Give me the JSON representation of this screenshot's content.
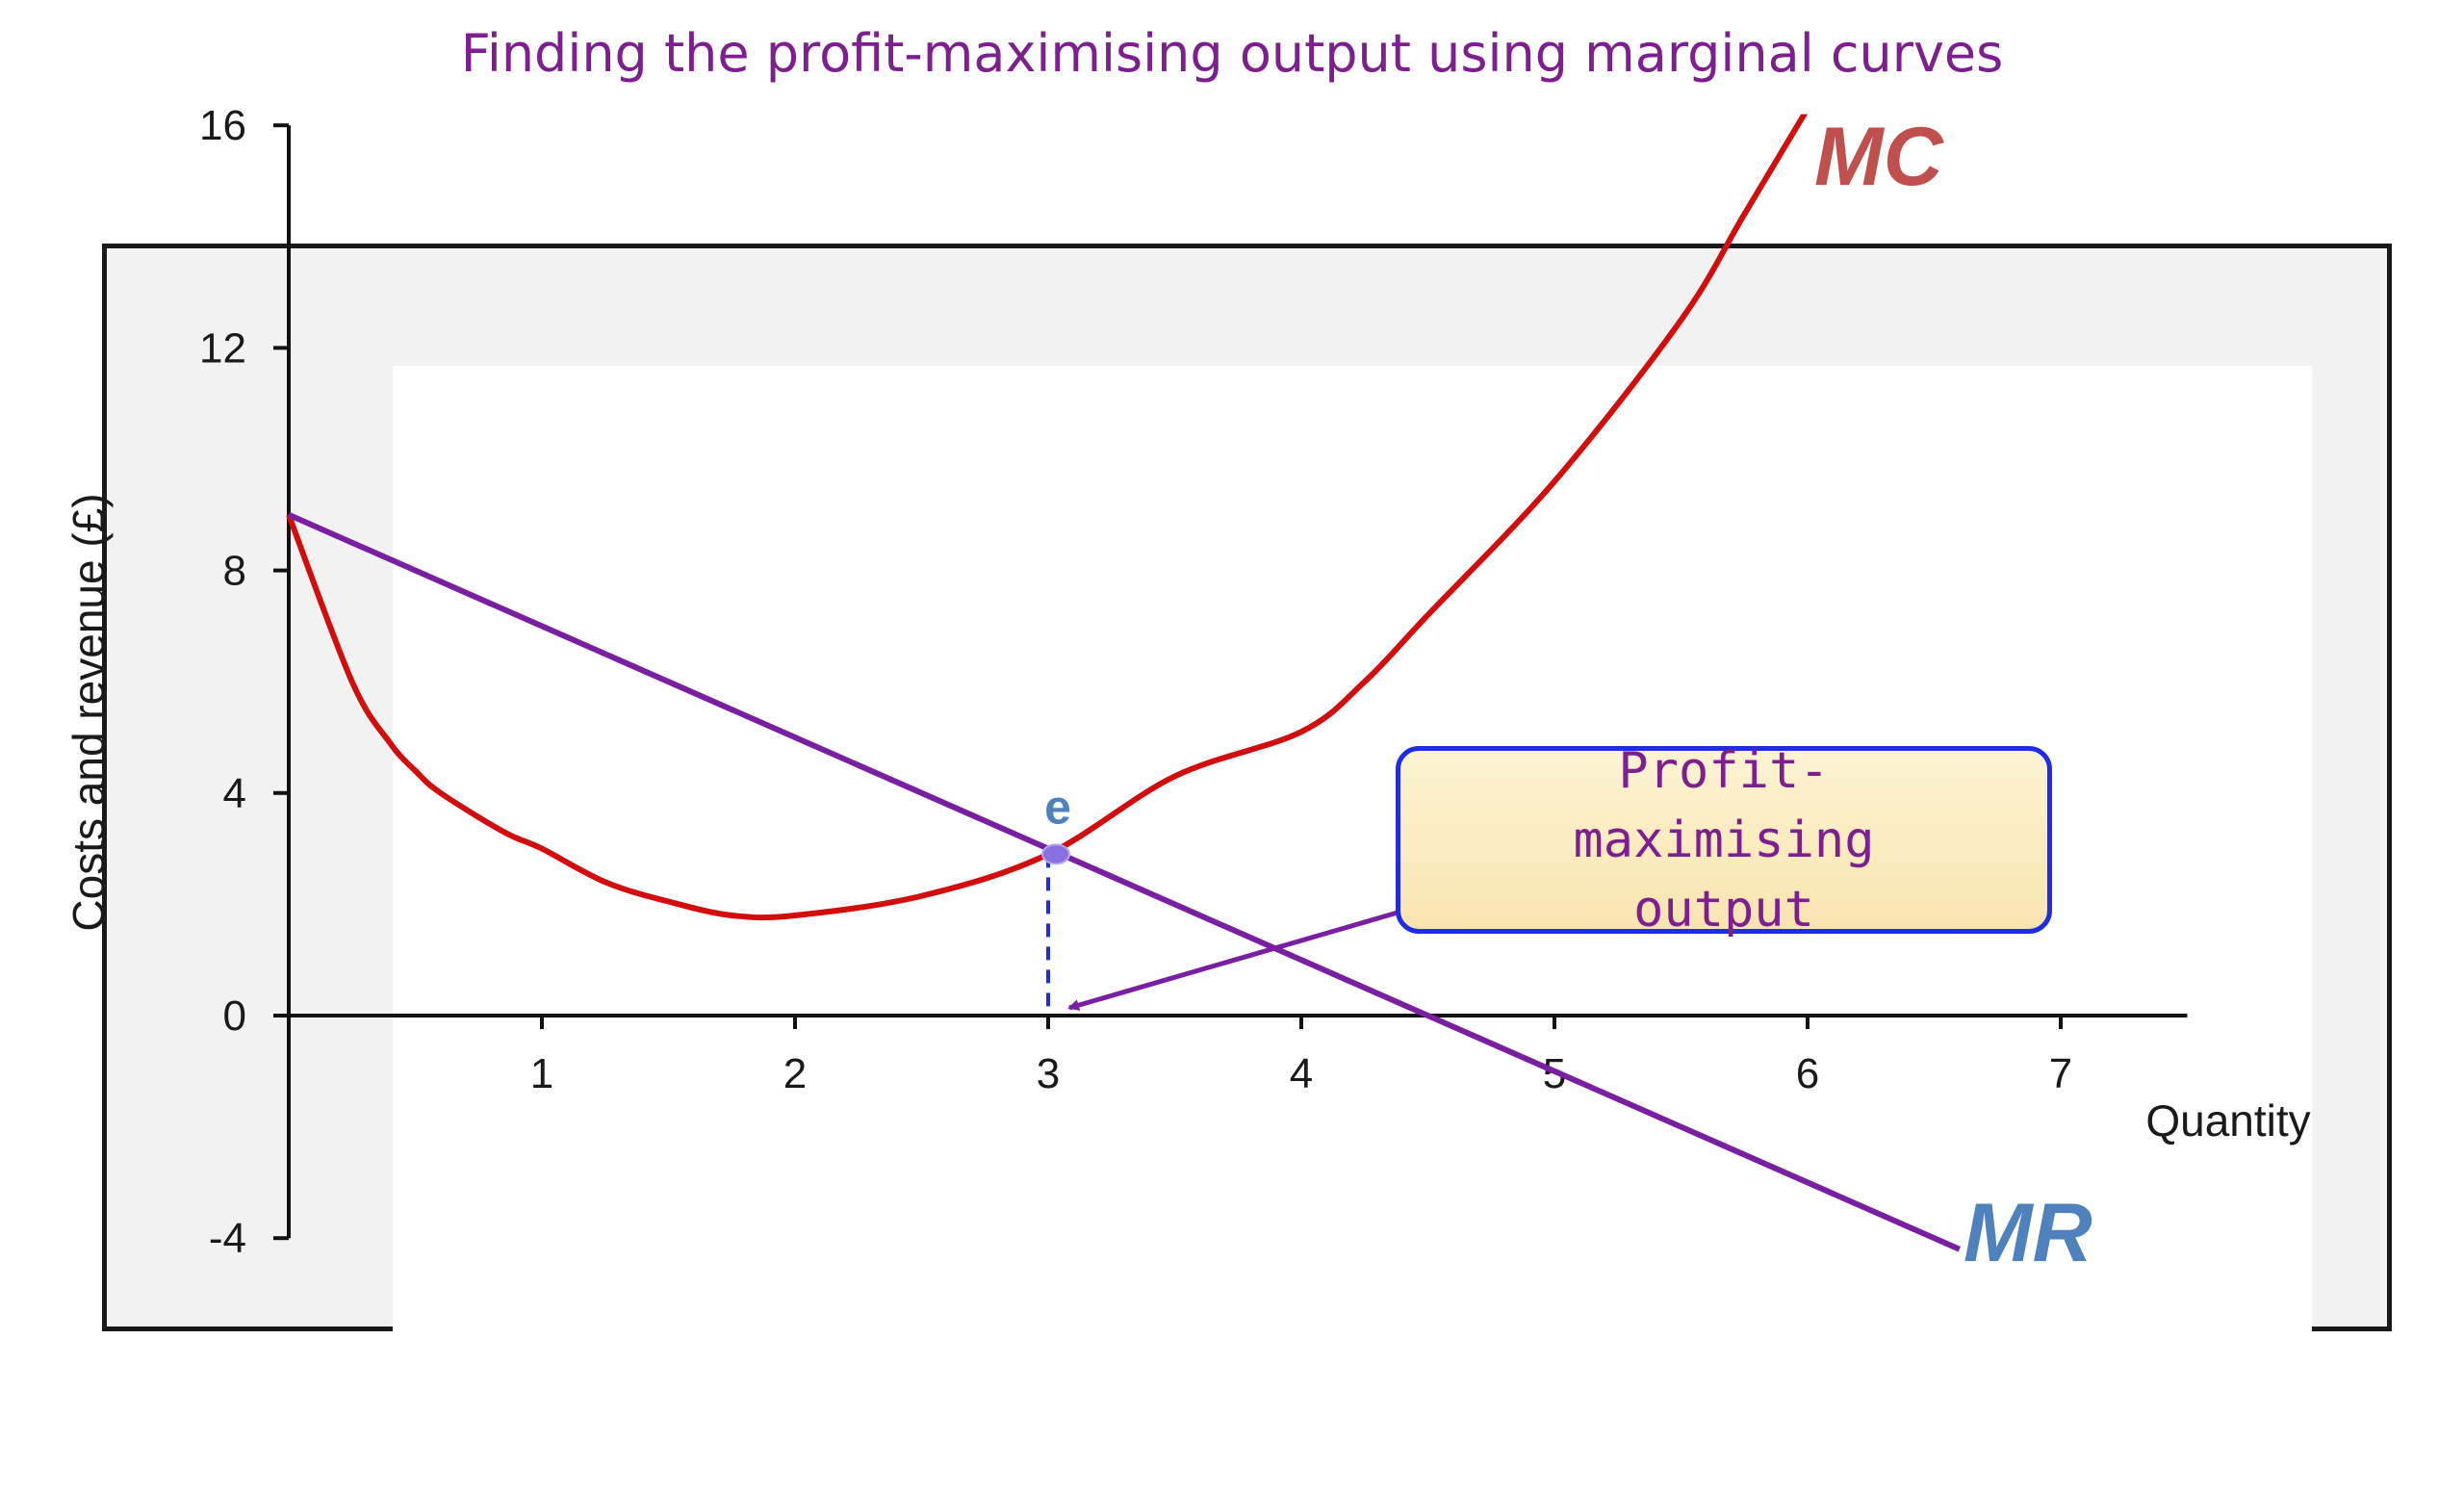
{
  "title": "Finding the profit-maximising output using marginal curves",
  "callout": {
    "text": "Profit-maximising output"
  },
  "point_label": "e",
  "colors": {
    "mc": "#d10d0d",
    "mr": "#7a1fa2",
    "mc_label": "#c0504d",
    "mr_label": "#4f81bd",
    "point": "#8a6fe0",
    "dashed": "#1f2ee6",
    "title": "#7d1f8e"
  },
  "chart_data": {
    "type": "line",
    "title": "Finding the profit-maximising output using marginal curves",
    "xlabel": "Quantity",
    "ylabel": "Costs and revenue (£)",
    "xlim": [
      0,
      7.5
    ],
    "ylim": [
      -4,
      16
    ],
    "x_ticks": [
      1,
      2,
      3,
      4,
      5,
      6,
      7
    ],
    "y_ticks": [
      -4,
      0,
      4,
      8,
      12,
      16
    ],
    "series": [
      {
        "name": "MC",
        "x": [
          0,
          0.25,
          0.4,
          0.5,
          0.6,
          0.85,
          1.0,
          1.25,
          1.5,
          1.75,
          2.0,
          2.5,
          3.0,
          3.5,
          4.0,
          4.25,
          4.5,
          5.0,
          5.5,
          5.75,
          6.0
        ],
        "y": [
          9.0,
          6.0,
          4.9,
          4.4,
          4.0,
          3.3,
          3.0,
          2.4,
          2.05,
          1.8,
          1.8,
          2.15,
          2.9,
          4.3,
          5.1,
          6.0,
          7.2,
          9.6,
          12.5,
          14.4,
          16.3
        ]
      },
      {
        "name": "MR",
        "x": [
          0,
          6.6
        ],
        "y": [
          9.0,
          -4.2
        ]
      }
    ],
    "annotations": [
      {
        "label": "e",
        "x": 3.0,
        "y": 2.9
      },
      {
        "label": "Profit-maximising output",
        "x": 3.0,
        "y": 0
      }
    ]
  }
}
